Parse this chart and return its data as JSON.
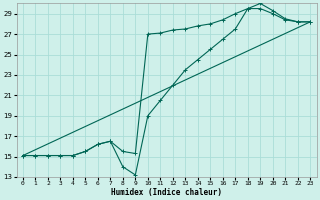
{
  "xlabel": "Humidex (Indice chaleur)",
  "bg_color": "#cff0ea",
  "grid_color": "#aaddd8",
  "line_color": "#006655",
  "xlim": [
    -0.5,
    23.5
  ],
  "ylim": [
    13,
    30
  ],
  "xticks": [
    0,
    1,
    2,
    3,
    4,
    5,
    6,
    7,
    8,
    9,
    10,
    11,
    12,
    13,
    14,
    15,
    16,
    17,
    18,
    19,
    20,
    21,
    22,
    23
  ],
  "yticks": [
    13,
    15,
    17,
    19,
    21,
    23,
    25,
    27,
    29
  ],
  "series1_x": [
    0,
    1,
    2,
    3,
    4,
    5,
    6,
    7,
    8,
    9,
    10,
    11,
    12,
    13,
    14,
    15,
    16,
    17,
    18,
    19,
    20,
    21,
    22,
    23
  ],
  "series1_y": [
    15.1,
    15.1,
    15.1,
    15.1,
    15.1,
    15.5,
    16.2,
    16.5,
    15.5,
    15.3,
    27.0,
    27.1,
    27.4,
    27.5,
    27.8,
    28.0,
    28.4,
    29.0,
    29.5,
    29.5,
    29.0,
    28.4,
    28.2,
    28.2
  ],
  "series2_x": [
    0,
    1,
    2,
    3,
    4,
    5,
    6,
    7,
    8,
    9,
    10,
    11,
    12,
    13,
    14,
    15,
    16,
    17,
    18,
    19,
    20,
    21,
    22,
    23
  ],
  "series2_y": [
    15.1,
    15.1,
    15.1,
    15.1,
    15.1,
    15.5,
    16.2,
    16.5,
    14.0,
    13.2,
    19.0,
    20.5,
    22.0,
    23.5,
    24.5,
    25.5,
    26.5,
    27.5,
    29.5,
    30.0,
    29.3,
    28.5,
    28.2,
    28.2
  ],
  "series3_x": [
    0,
    23
  ],
  "series3_y": [
    15.1,
    28.2
  ]
}
